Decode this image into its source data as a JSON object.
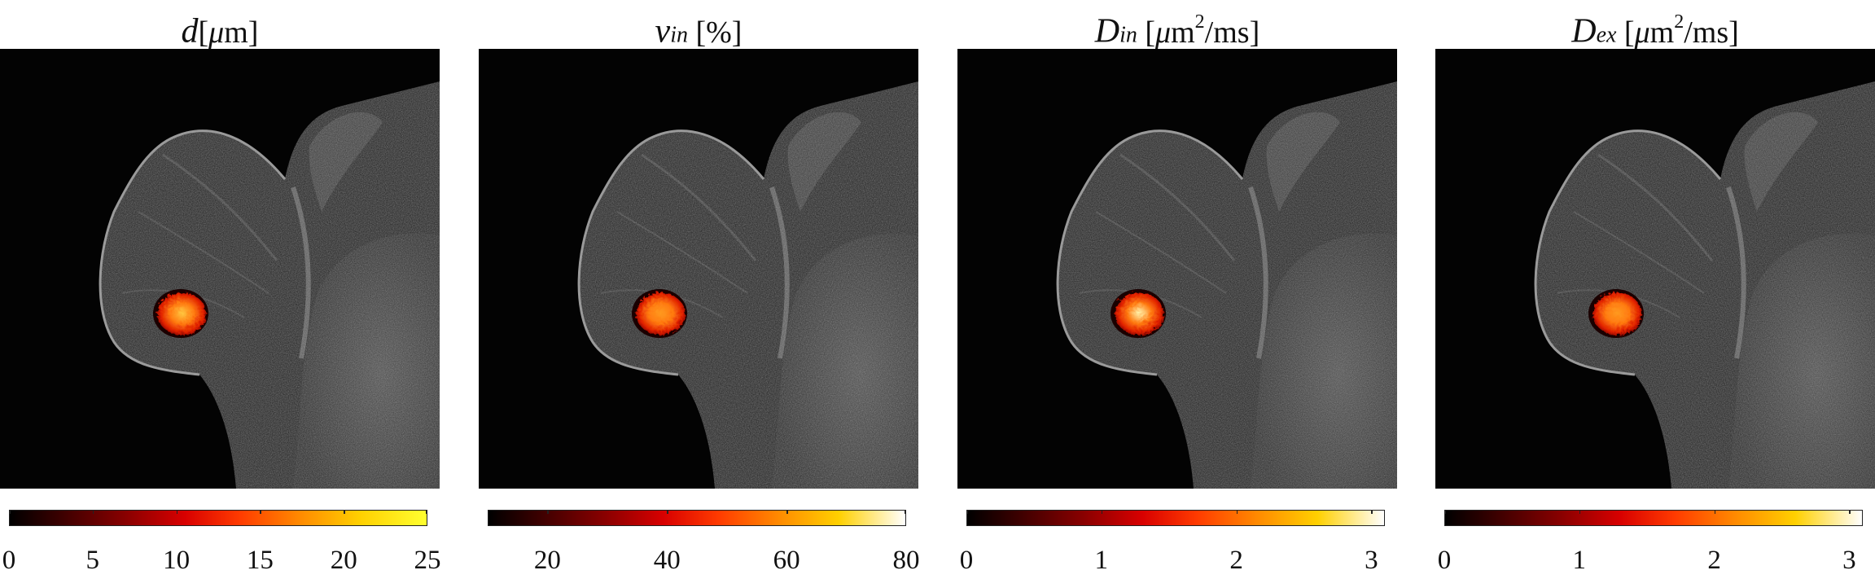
{
  "panels": [
    {
      "id": "d",
      "title": {
        "symbol": "d",
        "subscript": "",
        "unit_prefix": "[",
        "unit_mu": "μ",
        "unit_text": "m]",
        "unit_sup": "",
        "unit_after": ""
      },
      "colorbar": {
        "min": 0,
        "max": 25,
        "ticks": [
          "0",
          "5",
          "10",
          "15",
          "20",
          "25"
        ],
        "tick_values": [
          0,
          5,
          10,
          15,
          20,
          25
        ],
        "colormap": "hot",
        "top_color": "#ffff30"
      },
      "overlay": {
        "intensity": 0.55
      }
    },
    {
      "id": "vin",
      "title": {
        "symbol": "v",
        "subscript": "in",
        "unit_prefix": " [%]",
        "unit_mu": "",
        "unit_text": "",
        "unit_sup": "",
        "unit_after": ""
      },
      "colorbar": {
        "min": 10,
        "max": 80,
        "ticks": [
          "20",
          "40",
          "60",
          "80"
        ],
        "tick_values": [
          20,
          40,
          60,
          80
        ],
        "colormap": "hot",
        "top_color": "#ffffff"
      },
      "overlay": {
        "intensity": 0.42
      }
    },
    {
      "id": "Din",
      "title": {
        "symbol": "D",
        "subscript": "in",
        "unit_prefix": "  [",
        "unit_mu": "μ",
        "unit_text": "m",
        "unit_sup": "2",
        "unit_after": "/ms]"
      },
      "colorbar": {
        "min": 0,
        "max": 3.1,
        "ticks": [
          "0",
          "1",
          "2",
          "3"
        ],
        "tick_values": [
          0,
          1,
          2,
          3
        ],
        "colormap": "hot",
        "top_color": "#ffffff"
      },
      "overlay": {
        "intensity": 0.78
      }
    },
    {
      "id": "Dex",
      "title": {
        "symbol": "D",
        "subscript": "ex",
        "unit_prefix": "  [",
        "unit_mu": "μ",
        "unit_text": "m",
        "unit_sup": "2",
        "unit_after": "/ms]"
      },
      "colorbar": {
        "min": 0,
        "max": 3.1,
        "ticks": [
          "0",
          "1",
          "2",
          "3"
        ],
        "tick_values": [
          0,
          1,
          2,
          3
        ],
        "colormap": "hot",
        "top_color": "#ffffff"
      },
      "overlay": {
        "intensity": 0.5
      }
    }
  ]
}
